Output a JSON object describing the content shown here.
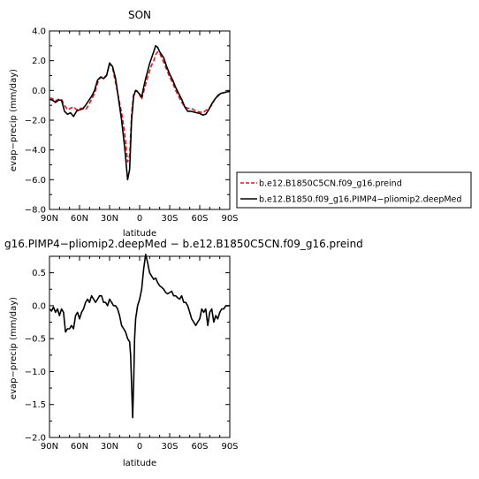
{
  "chart_data": [
    {
      "type": "line",
      "title": "SON",
      "xlabel": "latitude",
      "ylabel": "evap−precip (mm/day)",
      "x_tick_labels": [
        "90N",
        "60N",
        "30N",
        "0",
        "30S",
        "60S",
        "90S"
      ],
      "x_tick_values": [
        90,
        60,
        30,
        0,
        -30,
        -60,
        -90
      ],
      "xlim": [
        90,
        -90
      ],
      "ylim": [
        -8.0,
        4.0
      ],
      "y_ticks": [
        4.0,
        2.0,
        0.0,
        -2.0,
        -4.0,
        -6.0,
        -8.0
      ],
      "y_tick_labels": [
        "4.0",
        "2.0",
        "0.0",
        "−2.0",
        "−4.0",
        "−6.0",
        "−8.0"
      ],
      "grid": false,
      "legend_position": "right",
      "series": [
        {
          "name": "b.e12.B1850C5CN.f09_g16.preind",
          "color": "#e8141e",
          "style": "dashed",
          "x": [
            90,
            87,
            84,
            81,
            78,
            75,
            72,
            69,
            66,
            63,
            60,
            57,
            54,
            51,
            48,
            45,
            42,
            39,
            36,
            33,
            30,
            27,
            24,
            21,
            18,
            15,
            12,
            10,
            8,
            6,
            4,
            2,
            0,
            -2,
            -4,
            -6,
            -8,
            -10,
            -12,
            -14,
            -16,
            -18,
            -20,
            -22,
            -24,
            -27,
            -30,
            -33,
            -36,
            -39,
            -42,
            -45,
            -48,
            -51,
            -54,
            -57,
            -60,
            -63,
            -66,
            -69,
            -72,
            -75,
            -78,
            -81,
            -84,
            -87,
            -90
          ],
          "y": [
            -0.5,
            -0.55,
            -0.7,
            -0.6,
            -0.6,
            -1.0,
            -1.3,
            -1.2,
            -1.1,
            -1.3,
            -1.2,
            -1.2,
            -1.3,
            -1.0,
            -0.6,
            -0.2,
            0.5,
            0.9,
            0.9,
            1.0,
            1.8,
            1.5,
            0.5,
            -0.5,
            -1.5,
            -2.8,
            -4.8,
            -4.4,
            -1.6,
            -0.2,
            0.0,
            -0.05,
            -0.3,
            -0.6,
            -0.1,
            0.4,
            0.9,
            1.3,
            1.7,
            2.0,
            2.4,
            2.6,
            2.5,
            2.2,
            1.9,
            1.4,
            0.9,
            0.5,
            0.0,
            -0.4,
            -0.8,
            -1.1,
            -1.2,
            -1.2,
            -1.3,
            -1.4,
            -1.45,
            -1.5,
            -1.35,
            -1.2,
            -1.0,
            -0.6,
            -0.4,
            -0.2,
            -0.15,
            -0.1,
            -0.1
          ]
        },
        {
          "name": "b.e12.B1850.f09_g16.PIMP4−pliomip2.deepMed",
          "color": "#000000",
          "style": "solid",
          "x": [
            90,
            87,
            84,
            81,
            78,
            75,
            72,
            69,
            66,
            63,
            60,
            57,
            54,
            51,
            48,
            45,
            42,
            39,
            36,
            33,
            30,
            27,
            24,
            21,
            18,
            15,
            12,
            10,
            8,
            6,
            4,
            2,
            0,
            -2,
            -4,
            -6,
            -8,
            -10,
            -12,
            -14,
            -16,
            -18,
            -20,
            -22,
            -24,
            -27,
            -30,
            -33,
            -36,
            -39,
            -42,
            -45,
            -48,
            -51,
            -54,
            -57,
            -60,
            -63,
            -66,
            -69,
            -72,
            -75,
            -78,
            -81,
            -84,
            -87,
            -90
          ],
          "y": [
            -0.6,
            -0.65,
            -0.8,
            -0.65,
            -0.65,
            -1.4,
            -1.6,
            -1.5,
            -1.75,
            -1.4,
            -1.3,
            -1.25,
            -1.0,
            -0.7,
            -0.4,
            0.0,
            0.7,
            0.9,
            0.8,
            1.0,
            1.85,
            1.6,
            0.8,
            -0.6,
            -2.0,
            -3.8,
            -6.0,
            -5.3,
            -2.0,
            -0.4,
            0.0,
            -0.1,
            -0.25,
            -0.45,
            0.2,
            0.8,
            1.3,
            1.8,
            2.2,
            2.6,
            3.0,
            2.9,
            2.6,
            2.4,
            2.2,
            1.6,
            1.1,
            0.7,
            0.2,
            -0.2,
            -0.6,
            -1.1,
            -1.4,
            -1.4,
            -1.45,
            -1.5,
            -1.55,
            -1.65,
            -1.6,
            -1.3,
            -0.9,
            -0.6,
            -0.35,
            -0.2,
            -0.15,
            -0.1,
            -0.05
          ]
        }
      ]
    },
    {
      "type": "line",
      "title": "g16.PIMP4−pliomip2.deepMed − b.e12.B1850C5CN.f09_g16.preind",
      "xlabel": "latitude",
      "ylabel": "evap−precip (mm/day)",
      "x_tick_labels": [
        "90N",
        "60N",
        "30N",
        "0",
        "30S",
        "60S",
        "90S"
      ],
      "x_tick_values": [
        90,
        60,
        30,
        0,
        -30,
        -60,
        -90
      ],
      "xlim": [
        90,
        -90
      ],
      "ylim": [
        -2.0,
        0.75
      ],
      "y_ticks": [
        0.5,
        0.0,
        -0.5,
        -1.0,
        -1.5,
        -2.0
      ],
      "y_tick_labels": [
        "0.5",
        "0.0",
        "−0.5",
        "−1.0",
        "−1.5",
        "−2.0"
      ],
      "grid": false,
      "series": [
        {
          "color": "#000000",
          "style": "solid",
          "x": [
            90,
            88,
            86,
            84,
            82,
            80,
            78,
            76,
            74,
            72,
            70,
            68,
            66,
            64,
            62,
            60,
            58,
            56,
            54,
            52,
            50,
            48,
            46,
            44,
            42,
            40,
            38,
            36,
            34,
            32,
            30,
            28,
            26,
            24,
            22,
            20,
            18,
            16,
            14,
            12,
            10,
            9,
            8,
            7,
            6,
            5,
            4,
            3,
            2,
            0,
            -2,
            -4,
            -6,
            -8,
            -10,
            -12,
            -14,
            -16,
            -18,
            -20,
            -22,
            -24,
            -26,
            -28,
            -30,
            -32,
            -34,
            -36,
            -38,
            -40,
            -42,
            -44,
            -46,
            -48,
            -50,
            -52,
            -54,
            -56,
            -58,
            -60,
            -62,
            -64,
            -66,
            -68,
            -70,
            -72,
            -74,
            -76,
            -78,
            -80,
            -82,
            -84,
            -86,
            -88,
            -90
          ],
          "y": [
            -0.05,
            -0.08,
            -0.02,
            -0.1,
            -0.05,
            -0.15,
            -0.05,
            -0.1,
            -0.4,
            -0.35,
            -0.35,
            -0.3,
            -0.35,
            -0.15,
            -0.1,
            -0.2,
            -0.1,
            -0.05,
            0.05,
            0.1,
            0.05,
            0.15,
            0.1,
            0.05,
            0.1,
            0.15,
            0.15,
            0.05,
            0.05,
            0.0,
            0.1,
            0.05,
            0.0,
            0.0,
            -0.05,
            -0.15,
            -0.3,
            -0.35,
            -0.4,
            -0.5,
            -0.55,
            -0.75,
            -1.2,
            -1.7,
            -1.2,
            -0.5,
            -0.2,
            -0.1,
            0.0,
            0.1,
            0.25,
            0.55,
            0.78,
            0.65,
            0.5,
            0.45,
            0.4,
            0.42,
            0.35,
            0.3,
            0.28,
            0.25,
            0.2,
            0.18,
            0.2,
            0.22,
            0.15,
            0.15,
            0.12,
            0.1,
            0.15,
            0.05,
            0.05,
            0.0,
            -0.1,
            -0.2,
            -0.25,
            -0.3,
            -0.25,
            -0.2,
            -0.05,
            -0.1,
            -0.05,
            -0.3,
            -0.1,
            -0.05,
            -0.25,
            -0.15,
            -0.2,
            -0.1,
            -0.05,
            -0.05,
            0.0,
            0.0,
            0.0
          ]
        }
      ]
    }
  ]
}
